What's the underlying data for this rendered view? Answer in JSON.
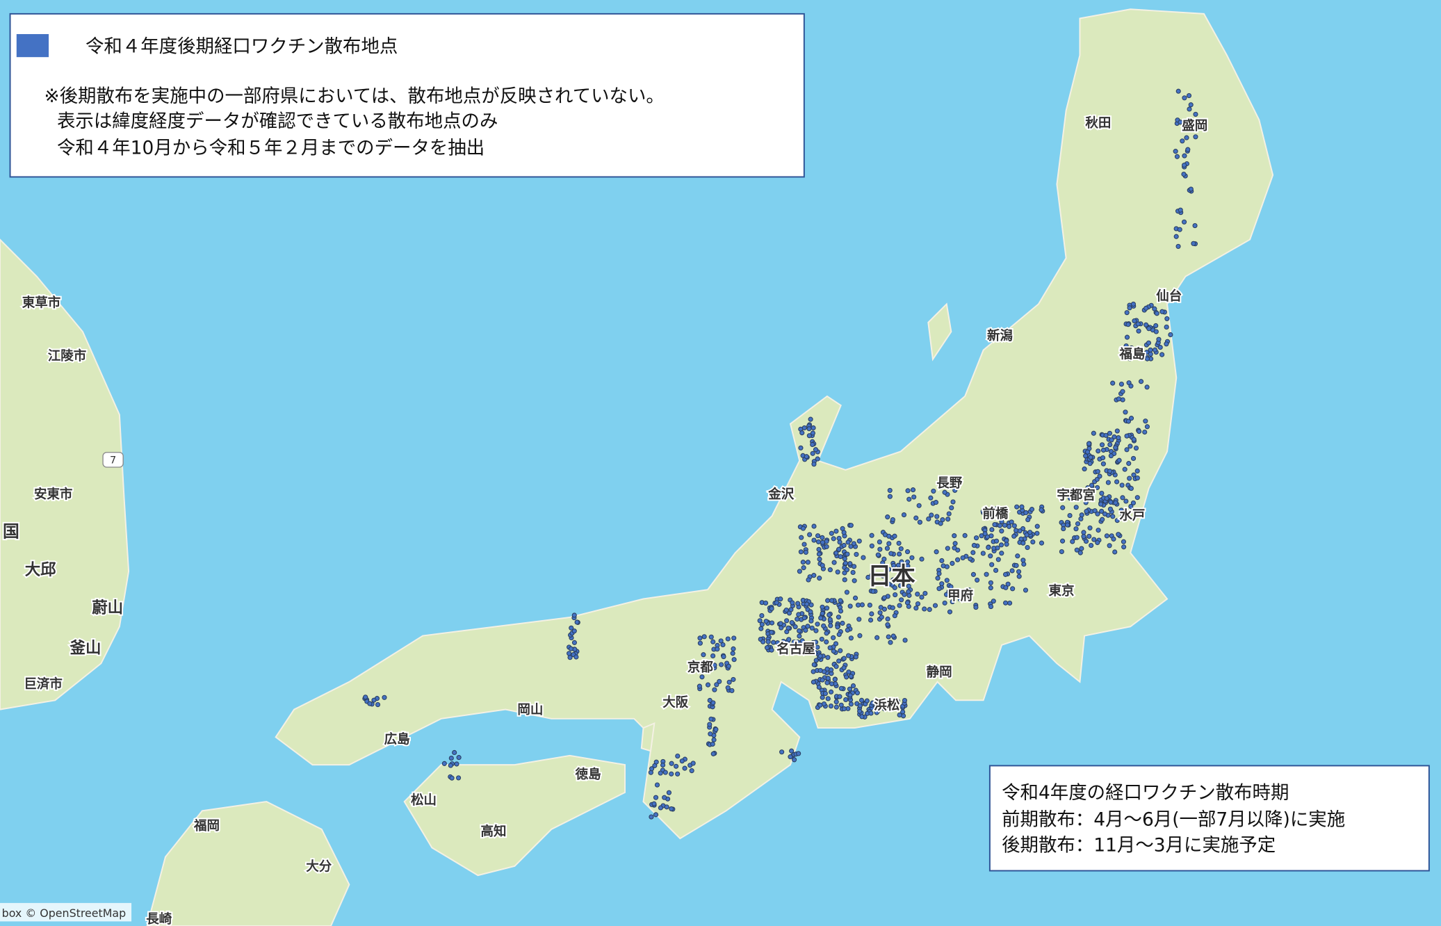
{
  "legend": {
    "label": "令和４年度後期経口ワクチン散布地点",
    "notes": [
      "※後期散布を実施中の一部府県においては、散布地点が反映されていない。",
      "表示は緯度経度データが確認できている散布地点のみ",
      "令和４年10月から令和５年２月までのデータを抽出"
    ]
  },
  "info": {
    "lines": [
      "令和4年度の経口ワクチン散布時期",
      "前期散布：4月～6月(一部7月以降)に実施",
      "後期散布：11月～3月に実施予定"
    ]
  },
  "places": [
    "秋田",
    "盛岡",
    "仙台",
    "新潟",
    "福島",
    "長野",
    "金沢",
    "前橋",
    "宇都宮",
    "水戸",
    "甲府",
    "東京",
    "名古屋",
    "京都",
    "静岡",
    "浜松",
    "大阪",
    "岡山",
    "広島",
    "徳島",
    "松山",
    "高知",
    "福岡",
    "大分",
    "長崎",
    "東草市",
    "江陵市",
    "安東市",
    "国",
    "大邱",
    "蔚山",
    "釜山",
    "巨済市"
  ],
  "country_label": "日本",
  "road_sign": "7",
  "attribution": "box © OpenStreetMap"
}
